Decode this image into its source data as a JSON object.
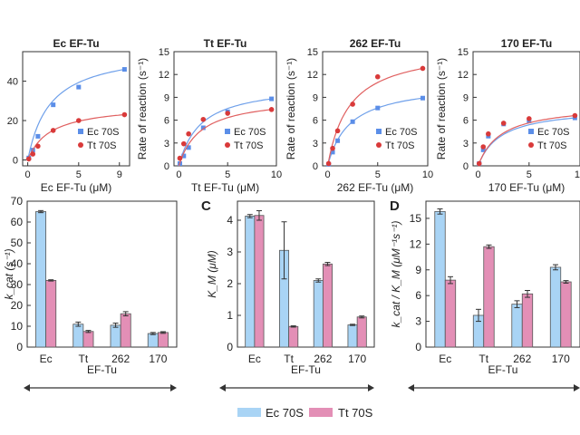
{
  "colors": {
    "ec": "#5b8ee8",
    "tt": "#d93a3a",
    "ec_fit": "#6fa0ea",
    "tt_fit": "#e06060",
    "bar_ec": "#a9d4f5",
    "bar_tt": "#e38fb6",
    "axis": "#333333"
  },
  "chart_data": [
    {
      "type": "scatter",
      "title": "Ec EF-Tu",
      "xlabel": "Ec EF-Tu (μM)",
      "ylabel": "",
      "xlim": [
        -0.5,
        10
      ],
      "ylim": [
        -3,
        55
      ],
      "xticks": [
        "0",
        "5",
        "9"
      ],
      "yticks": [
        "0",
        "20",
        "40"
      ],
      "legend": [
        "Ec 70S",
        "Tt 70S"
      ],
      "series": [
        {
          "name": "Ec 70S",
          "x": [
            0.1,
            0.5,
            1,
            2.5,
            5,
            9.5
          ],
          "y": [
            1,
            5,
            12,
            28,
            37,
            46
          ]
        },
        {
          "name": "Tt 70S",
          "x": [
            0.1,
            0.5,
            1,
            2.5,
            5,
            9.5
          ],
          "y": [
            0.5,
            3,
            7,
            15,
            20,
            23
          ]
        }
      ]
    },
    {
      "type": "scatter",
      "title": "Tt EF-Tu",
      "xlabel": "Tt EF-Tu (μM)",
      "ylabel": "Rate of reaction (s⁻¹)",
      "xlim": [
        -0.5,
        10
      ],
      "ylim": [
        0,
        15
      ],
      "xticks": [
        "0",
        "5",
        "10"
      ],
      "yticks": [
        "0",
        "3",
        "6",
        "9",
        "12",
        "15"
      ],
      "legend": [
        "Ec 70S",
        "Tt 70S"
      ],
      "series": [
        {
          "name": "Ec 70S",
          "x": [
            0.1,
            0.5,
            1,
            2.5,
            5,
            9.5
          ],
          "y": [
            0.3,
            1.3,
            2.4,
            5.0,
            7.1,
            8.8
          ]
        },
        {
          "name": "Tt 70S",
          "x": [
            0.1,
            0.5,
            1,
            2.5,
            5,
            9.5
          ],
          "y": [
            1.0,
            2.9,
            4.2,
            6.1,
            6.9,
            7.4
          ]
        }
      ]
    },
    {
      "type": "scatter",
      "title": "262 EF-Tu",
      "xlabel": "262 EF-Tu (μM)",
      "ylabel": "Rate of reaction (s⁻¹)",
      "xlim": [
        -0.5,
        10
      ],
      "ylim": [
        0,
        15
      ],
      "xticks": [
        "0",
        "5",
        "10"
      ],
      "yticks": [
        "0",
        "3",
        "6",
        "9",
        "12",
        "15"
      ],
      "legend": [
        "Ec 70S",
        "Tt 70S"
      ],
      "series": [
        {
          "name": "Ec 70S",
          "x": [
            0.1,
            0.5,
            1,
            2.5,
            5,
            9.5
          ],
          "y": [
            0.2,
            1.8,
            3.3,
            5.8,
            7.6,
            8.9
          ]
        },
        {
          "name": "Tt 70S",
          "x": [
            0.1,
            0.5,
            1,
            2.5,
            5,
            9.5
          ],
          "y": [
            0.3,
            2.3,
            4.6,
            8.1,
            11.7,
            12.8
          ]
        }
      ]
    },
    {
      "type": "scatter",
      "title": "170 EF-Tu",
      "xlabel": "170 EF-Tu (μM)",
      "ylabel": "Rate of reaction (s⁻¹)",
      "xlim": [
        -0.5,
        10
      ],
      "ylim": [
        0,
        15
      ],
      "xticks": [
        "0",
        "5",
        "10"
      ],
      "yticks": [
        "0",
        "3",
        "6",
        "9",
        "12",
        "15"
      ],
      "legend": [
        "Ec 70S",
        "Tt 70S"
      ],
      "series": [
        {
          "name": "Ec 70S",
          "x": [
            0.1,
            0.5,
            1,
            2.5,
            5,
            9.5
          ],
          "y": [
            0.3,
            2.1,
            3.9,
            5.5,
            5.9,
            6.3
          ]
        },
        {
          "name": "Tt 70S",
          "x": [
            0.1,
            0.5,
            1,
            2.5,
            5,
            9.5
          ],
          "y": [
            0.3,
            2.5,
            4.2,
            5.6,
            6.2,
            6.6
          ]
        }
      ]
    },
    {
      "type": "bar",
      "panel": "",
      "ylabel": "k_cat (s⁻¹)",
      "categories": [
        "Ec",
        "Tt",
        "262",
        "170"
      ],
      "ylim": [
        0,
        70
      ],
      "yticks": [
        "0",
        "10",
        "20",
        "30",
        "40",
        "50",
        "60",
        "70"
      ],
      "xlabel": "EF-Tu",
      "series": [
        {
          "name": "Ec 70S",
          "values": [
            65,
            11,
            10.5,
            6.5
          ],
          "errors": [
            0.5,
            1,
            1,
            0.5
          ]
        },
        {
          "name": "Tt 70S",
          "values": [
            32,
            7.5,
            16,
            7
          ],
          "errors": [
            0.3,
            0.5,
            1,
            0.4
          ]
        }
      ]
    },
    {
      "type": "bar",
      "panel": "C",
      "ylabel": "K_M (μM)",
      "categories": [
        "Ec",
        "Tt",
        "262",
        "170"
      ],
      "ylim": [
        0,
        4.6
      ],
      "yticks": [
        "0",
        "1",
        "2",
        "3",
        "4"
      ],
      "xlabel": "EF-Tu",
      "series": [
        {
          "name": "Ec 70S",
          "values": [
            4.13,
            3.05,
            2.1,
            0.7
          ],
          "errors": [
            0.05,
            0.9,
            0.05,
            0.02
          ]
        },
        {
          "name": "Tt 70S",
          "values": [
            4.15,
            0.65,
            2.62,
            0.95
          ],
          "errors": [
            0.15,
            0.02,
            0.05,
            0.03
          ]
        }
      ]
    },
    {
      "type": "bar",
      "panel": "D",
      "ylabel": "k_cat / K_M (μM⁻¹s⁻¹)",
      "categories": [
        "Ec",
        "Tt",
        "262",
        "170"
      ],
      "ylim": [
        0,
        17
      ],
      "yticks": [
        "0",
        "3",
        "6",
        "9",
        "12",
        "15"
      ],
      "xlabel": "EF-Tu",
      "series": [
        {
          "name": "Ec 70S",
          "values": [
            15.8,
            3.7,
            5.0,
            9.3
          ],
          "errors": [
            0.3,
            0.7,
            0.4,
            0.3
          ]
        },
        {
          "name": "Tt 70S",
          "values": [
            7.8,
            11.7,
            6.2,
            7.6
          ],
          "errors": [
            0.4,
            0.2,
            0.4,
            0.15
          ]
        }
      ]
    }
  ],
  "bottom_legend": [
    "Ec 70S",
    "Tt 70S"
  ]
}
